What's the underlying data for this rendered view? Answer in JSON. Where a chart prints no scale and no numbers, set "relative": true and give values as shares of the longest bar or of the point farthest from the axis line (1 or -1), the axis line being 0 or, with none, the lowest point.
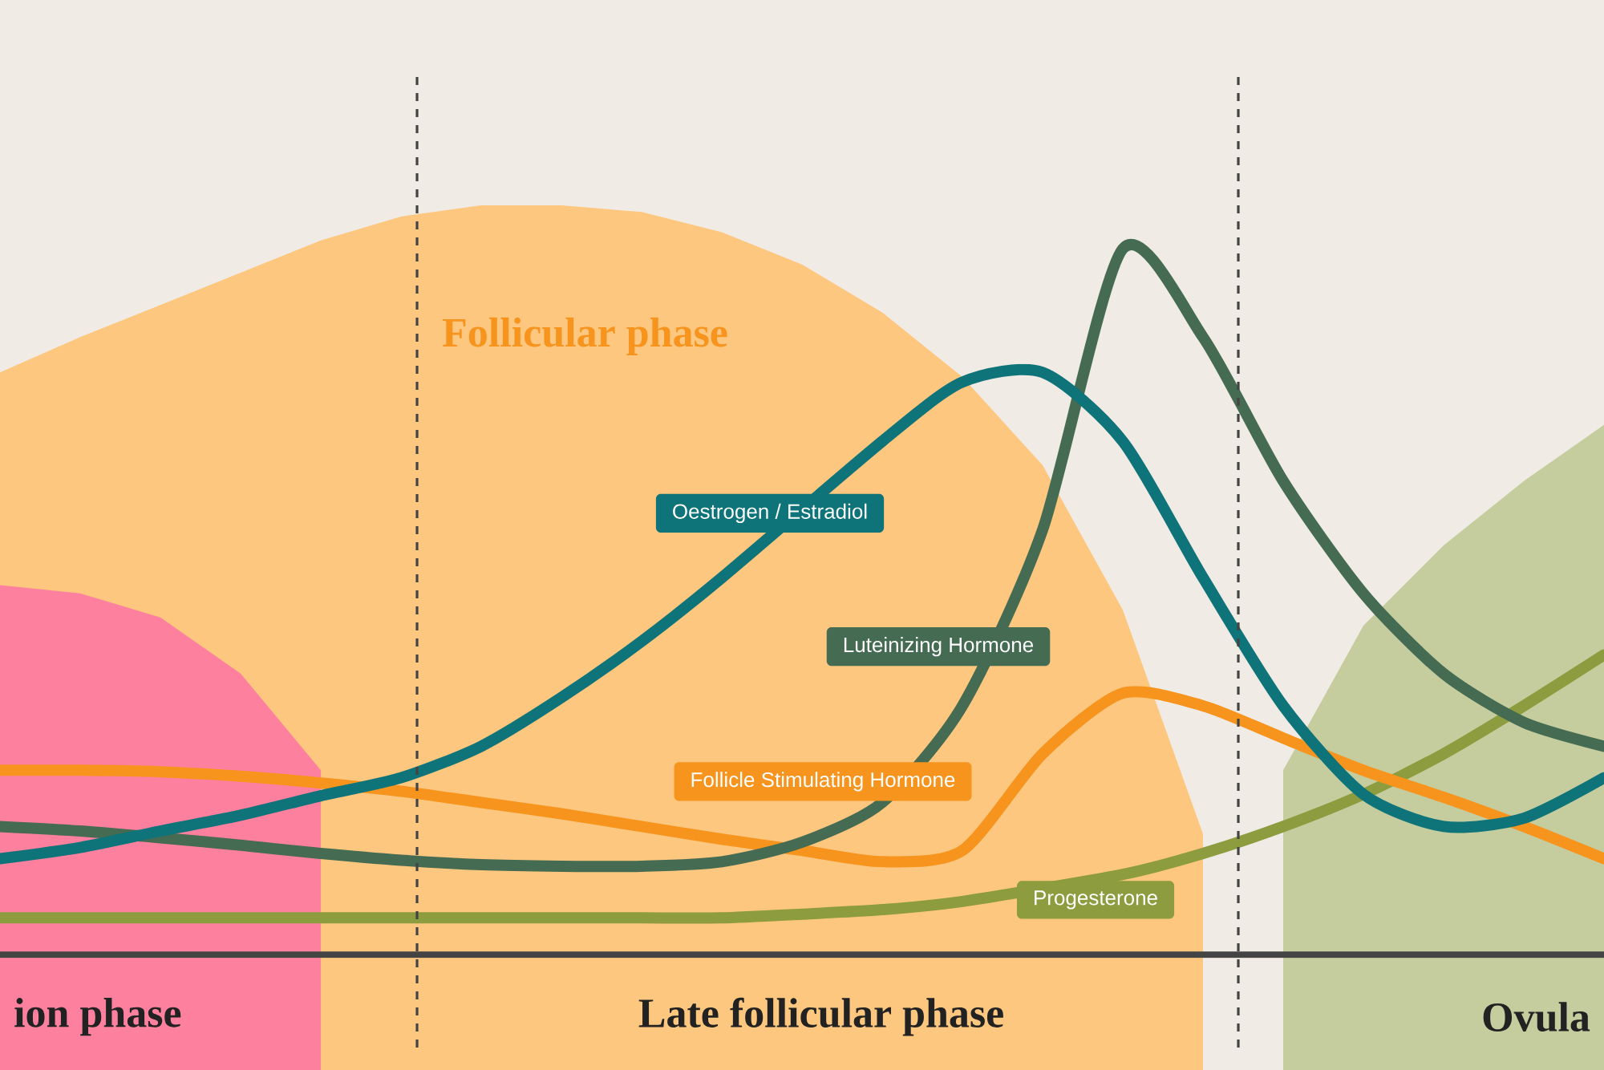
{
  "chart_data": {
    "type": "line",
    "relative": true,
    "line_style": "solid",
    "marker": "none",
    "categories": [
      null,
      null,
      null,
      null,
      null,
      null,
      null,
      null,
      null,
      null,
      null,
      null,
      null,
      null,
      null,
      null,
      null,
      null,
      null,
      null,
      null
    ],
    "series": [
      {
        "type": "area",
        "color": "#fdc77f",
        "values": [
          0.777,
          0.824,
          0.867,
          0.91,
          0.953,
          0.985,
          1.0,
          1.0,
          0.991,
          0.964,
          0.921,
          0.857,
          0.771,
          0.653,
          0.46,
          0.161,
          null,
          null,
          null,
          null,
          null
        ]
      },
      {
        "type": "area",
        "color": "#fd809f",
        "values": [
          0.493,
          0.482,
          0.45,
          0.375,
          0.246,
          null,
          null,
          null,
          null,
          null,
          null,
          null,
          null,
          null,
          null,
          null,
          null,
          null,
          null,
          null,
          null
        ]
      },
      {
        "type": "area",
        "color": "#c5cd9e",
        "values": [
          null,
          null,
          null,
          null,
          null,
          null,
          null,
          null,
          null,
          null,
          null,
          null,
          null,
          null,
          null,
          null,
          0.246,
          0.439,
          0.546,
          0.632,
          0.707
        ]
      },
      {
        "name": "Progesterone",
        "color": "#8c9c3e",
        "values": [
          0.049,
          0.049,
          0.049,
          0.049,
          0.049,
          0.049,
          0.049,
          0.049,
          0.049,
          0.049,
          0.054,
          0.06,
          0.071,
          null,
          0.107,
          0.135,
          0.171,
          0.214,
          0.268,
          0.332,
          0.4
        ]
      },
      {
        "name": "Follicle Stimulating Hormone",
        "color": "#f7941d",
        "values": [
          0.246,
          0.246,
          0.244,
          0.238,
          0.229,
          0.218,
          0.203,
          0.188,
          0.171,
          0.154,
          0.139,
          0.124,
          0.139,
          0.268,
          0.349,
          0.332,
          0.289,
          0.246,
          0.21,
          0.171,
          0.128
        ]
      },
      {
        "name": "Luteinizing Hormone",
        "color": "#456b52",
        "values": [
          0.171,
          0.165,
          0.156,
          0.146,
          0.135,
          0.126,
          0.12,
          0.118,
          0.118,
          0.124,
          0.15,
          0.203,
          0.332,
          0.567,
          0.942,
          0.824,
          0.632,
          0.482,
          0.375,
          0.31,
          0.278
        ]
      },
      {
        "name": "Oestrogen / Estradiol",
        "color": "#0e7479",
        "values": [
          0.128,
          0.143,
          0.165,
          0.186,
          0.212,
          0.236,
          0.278,
          0.343,
          0.418,
          0.503,
          null,
          0.685,
          0.764,
          0.777,
          0.685,
          0.503,
          0.332,
          0.214,
          0.171,
          0.182,
          0.236
        ]
      }
    ],
    "annotations": [
      "Follicular phase",
      "ion phase",
      "Late follicular phase",
      "Ovula"
    ]
  }
}
